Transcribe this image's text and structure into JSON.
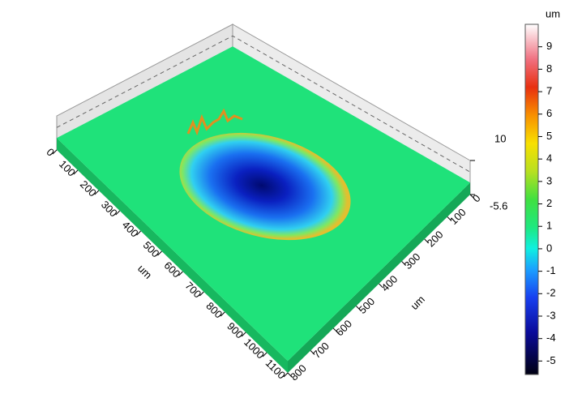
{
  "chart_data": {
    "type": "surface",
    "x_label": "um",
    "y_label": "um",
    "colorbar_label": "um",
    "xlim": [
      0,
      1100
    ],
    "xticks": [
      0,
      100,
      200,
      300,
      400,
      500,
      600,
      700,
      800,
      900,
      1000,
      1100
    ],
    "ylim": [
      0,
      800
    ],
    "yticks": [
      0,
      100,
      200,
      300,
      400,
      500,
      600,
      700,
      800
    ],
    "zlim": [
      -5.6,
      10
    ],
    "zticks": [
      -5.6,
      10
    ],
    "colorbar_ticks": [
      -5,
      -4,
      -3,
      -2,
      -1,
      0,
      1,
      2,
      3,
      4,
      5,
      6,
      7,
      8,
      9
    ],
    "color": "#1fe27a"
  }
}
